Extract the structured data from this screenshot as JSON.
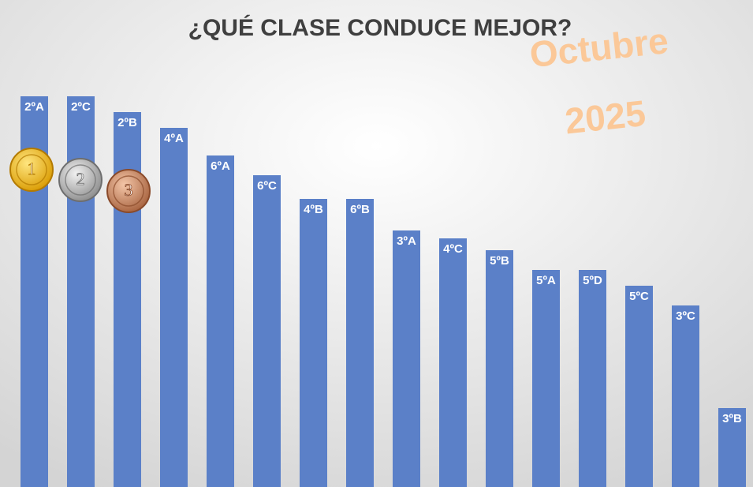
{
  "chart_data": {
    "type": "bar",
    "title": "¿QUÉ CLASE CONDUCE MEJOR?",
    "annotations": [
      "Octubre",
      "2025"
    ],
    "medals": [
      "1",
      "2",
      "3"
    ],
    "categories": [
      "2ºA",
      "2ºC",
      "2ºB",
      "4ºA",
      "6ºA",
      "6ºC",
      "4ºB",
      "6ºB",
      "3ºA",
      "4ºC",
      "5ºB",
      "5ºA",
      "5ºD",
      "5ºC",
      "3ºC",
      "3ºB"
    ],
    "values": [
      99,
      99,
      95,
      91,
      84,
      79,
      73,
      73,
      65,
      63,
      60,
      55,
      55,
      51,
      46,
      20
    ],
    "color": "#5b80c8",
    "ylim": [
      0,
      100
    ]
  }
}
